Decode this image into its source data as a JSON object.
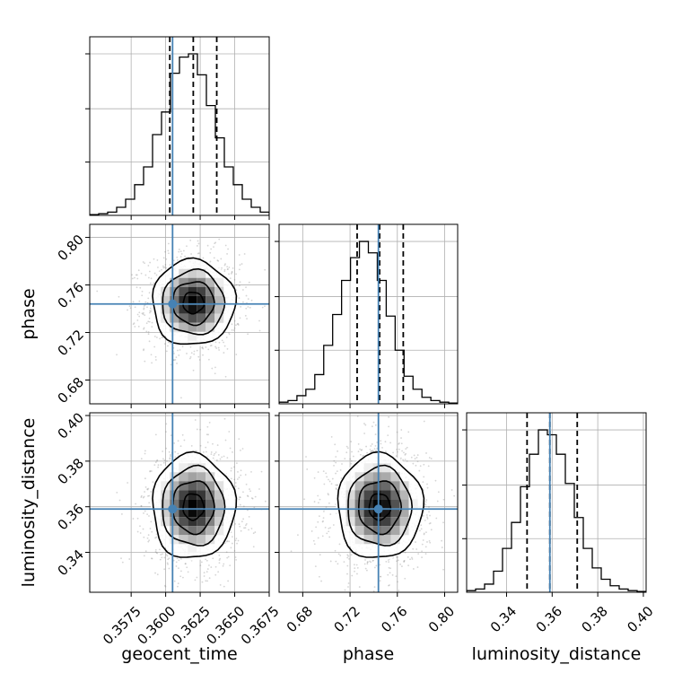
{
  "chart_data": {
    "type": "corner",
    "parameters": [
      "geocent_time",
      "phase",
      "luminosity_distance"
    ],
    "colors": {
      "truth": "#4682b4",
      "hist": "#000000",
      "scatter": "#888888",
      "grid": "#b0b0b0"
    },
    "grid": true,
    "axes": {
      "geocent_time": {
        "label": "geocent_time",
        "range": [
          0.3545,
          0.3675
        ],
        "ticks": [
          0.3575,
          0.36,
          0.3625,
          0.365,
          0.3675
        ],
        "tick_labels": [
          "0.3575",
          "0.3600",
          "0.3625",
          "0.3650",
          "0.3675"
        ]
      },
      "phase": {
        "label": "phase",
        "range": [
          0.66,
          0.811
        ],
        "ticks": [
          0.68,
          0.72,
          0.76,
          0.8
        ],
        "tick_labels": [
          "0.68",
          "0.72",
          "0.76",
          "0.80"
        ]
      },
      "luminosity_distance": {
        "label": "luminosity_distance",
        "range": [
          0.3225,
          0.4012
        ],
        "ticks": [
          0.34,
          0.36,
          0.38,
          0.4
        ],
        "tick_labels": [
          "0.34",
          "0.36",
          "0.38",
          "0.40"
        ]
      }
    },
    "truths": {
      "geocent_time": 0.3605,
      "phase": 0.744,
      "luminosity_distance": 0.359
    },
    "quantiles": {
      "geocent_time": [
        0.3603,
        0.362,
        0.3637
      ],
      "phase": [
        0.726,
        0.745,
        0.765
      ],
      "luminosity_distance": [
        0.349,
        0.359,
        0.371
      ]
    },
    "histograms": {
      "geocent_time": [
        0.005,
        0.01,
        0.02,
        0.05,
        0.1,
        0.19,
        0.3,
        0.5,
        0.64,
        0.88,
        0.98,
        1.0,
        0.87,
        0.68,
        0.48,
        0.3,
        0.19,
        0.1,
        0.05,
        0.02
      ],
      "phase": [
        0.01,
        0.02,
        0.05,
        0.09,
        0.18,
        0.36,
        0.55,
        0.76,
        0.9,
        1.0,
        0.93,
        0.76,
        0.54,
        0.33,
        0.17,
        0.09,
        0.04,
        0.02,
        0.01,
        0.005
      ],
      "luminosity_distance": [
        0.01,
        0.02,
        0.05,
        0.13,
        0.27,
        0.43,
        0.65,
        0.85,
        1.0,
        0.97,
        0.85,
        0.67,
        0.46,
        0.27,
        0.15,
        0.08,
        0.04,
        0.02,
        0.01,
        0.005
      ]
    },
    "distribution": {
      "geocent_time": {
        "mean": 0.362,
        "sd": 0.0015
      },
      "phase": {
        "mean": 0.745,
        "sd": 0.018
      },
      "luminosity_distance": {
        "mean": 0.36,
        "sd": 0.0115
      }
    }
  }
}
